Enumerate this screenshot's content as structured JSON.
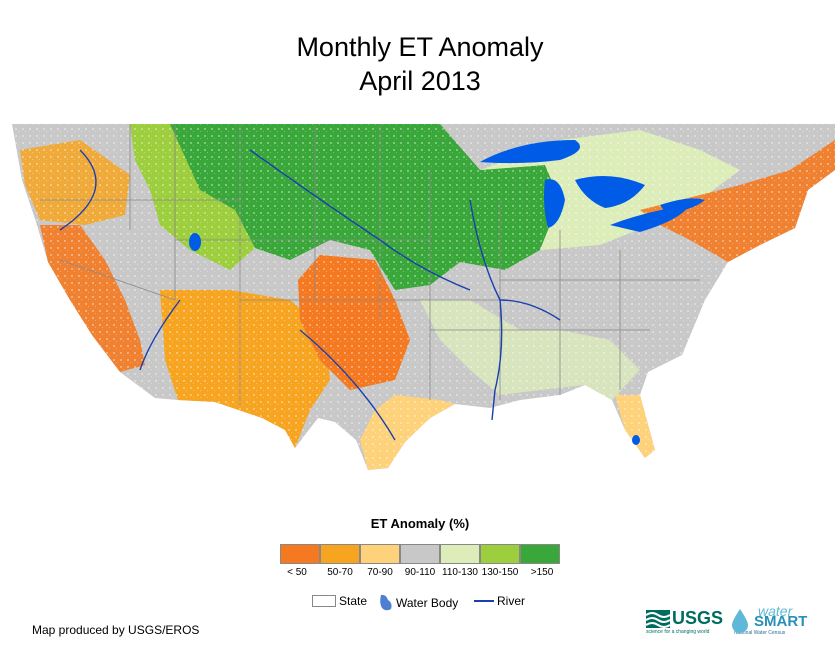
{
  "title": {
    "line1": "Monthly ET Anomaly",
    "line2": "April 2013"
  },
  "legend": {
    "title": "ET Anomaly (%)",
    "classes": [
      {
        "label": "< 50",
        "color": "#f47920"
      },
      {
        "label": "50-70",
        "color": "#f7a521"
      },
      {
        "label": "70-90",
        "color": "#fdd27a"
      },
      {
        "label": "90-110",
        "color": "#c8c8c8"
      },
      {
        "label": "110-130",
        "color": "#dcedba"
      },
      {
        "label": "130-150",
        "color": "#9cce3d"
      },
      {
        "label": ">150",
        "color": "#3aa73a"
      }
    ],
    "symbols": {
      "state": "State",
      "water_body": "Water Body",
      "river": "River"
    }
  },
  "colors": {
    "lake": "#005ce6",
    "river": "#1a3fae",
    "state_border": "#8a8a8a",
    "land_base": "#c8c8c8"
  },
  "credit": "Map produced by USGS/EROS",
  "logos": {
    "usgs": "USGS",
    "usgs_tagline": "science for a changing world",
    "watersmart_1": "water",
    "watersmart_2": "SMART",
    "watersmart_3": "National Water Census"
  }
}
